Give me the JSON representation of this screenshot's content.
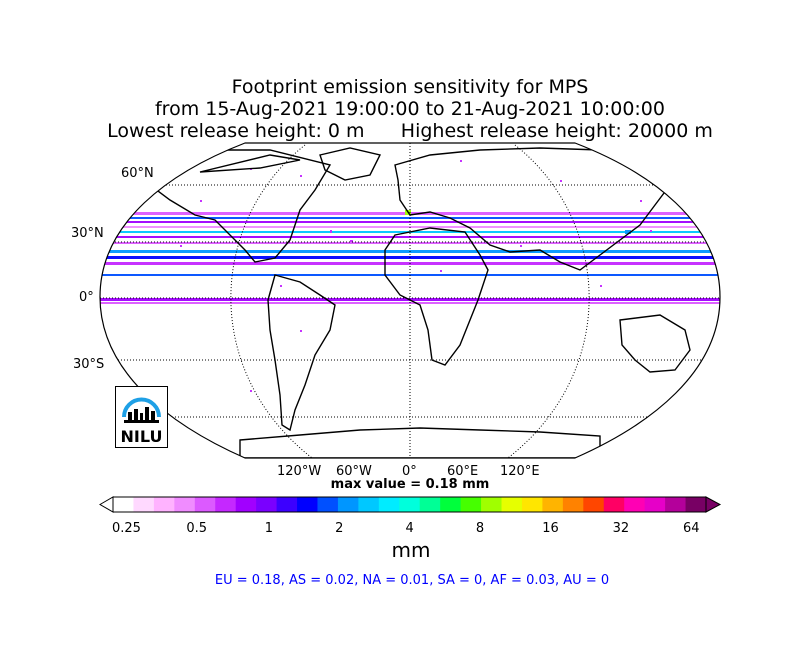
{
  "title": {
    "line1": "Footprint emission sensitivity for MPS",
    "line2": "from 15-Aug-2021 19:00:00 to 21-Aug-2021 10:00:00",
    "line3": "Lowest release height: 0 m      Highest release height: 20000 m"
  },
  "map": {
    "projection": "robinson",
    "grid": true,
    "lat_labels": [
      "60°N",
      "30°N",
      "0°",
      "30°S"
    ],
    "lon_labels": [
      "120°W",
      "60°W",
      "0°",
      "60°E",
      "120°E"
    ],
    "max_value_text": "max value = 0.18 mm",
    "logo_text": "NILU",
    "receptor": "MPS"
  },
  "colorbar": {
    "tick_labels": [
      "0.25",
      "0.5",
      "1",
      "2",
      "4",
      "8",
      "16",
      "32",
      "64"
    ],
    "unit": "mm",
    "colors": [
      "#ffffff",
      "#ffd9ff",
      "#ffb3ff",
      "#f08cff",
      "#dc5aff",
      "#c528ff",
      "#a100ff",
      "#7a00ff",
      "#3c00ff",
      "#0000ff",
      "#0050ff",
      "#0096ff",
      "#00c8ff",
      "#00ecff",
      "#00ffdc",
      "#00ff96",
      "#00ff3c",
      "#46ff00",
      "#a0ff00",
      "#e6ff00",
      "#ffe600",
      "#ffb400",
      "#ff8200",
      "#ff4600",
      "#ff0064",
      "#ff00b4",
      "#e600c8",
      "#b4009b",
      "#780064"
    ]
  },
  "regional_sums": "EU = 0.18,  AS = 0.02,  NA = 0.01,  SA = 0,  AF = 0.03,  AU = 0",
  "colors": {
    "regions_text": "#0000ff",
    "band_purple": "#a100ff",
    "band_blue": "#0000ff",
    "band_cyan": "#00ecff"
  }
}
